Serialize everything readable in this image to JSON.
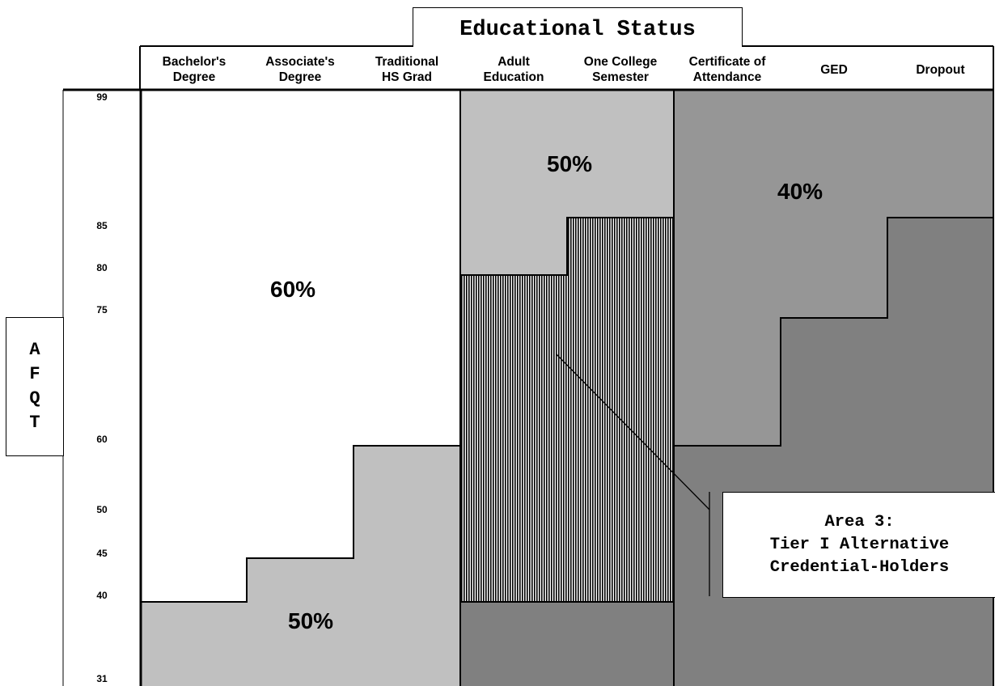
{
  "title": "Educational Status",
  "y_axis_label_letters": [
    "A",
    "F",
    "Q",
    "T"
  ],
  "columns": [
    "Bachelor's Degree",
    "Associate's Degree",
    "Traditional HS Grad",
    "Adult Education",
    "One College Semester",
    "Certificate of Attendance",
    "GED",
    "Dropout"
  ],
  "column_lines": [
    [
      "Bachelor's",
      "Degree"
    ],
    [
      "Associate's",
      "Degree"
    ],
    [
      "Traditional",
      "HS Grad"
    ],
    [
      "Adult",
      "Education"
    ],
    [
      "One College",
      "Semester"
    ],
    [
      "Certificate of",
      "Attendance"
    ],
    [
      "GED"
    ],
    [
      "Dropout"
    ]
  ],
  "afqt_ticks": [
    "99",
    "85",
    "80",
    "75",
    "60",
    "50",
    "45",
    "40",
    "31"
  ],
  "regions": [
    {
      "label": "60%",
      "fill": "#ffffff",
      "description_hidden": false
    },
    {
      "label": "50%",
      "fill": "#c0c0c0"
    },
    {
      "label": "50%",
      "fill": "#c0c0c0"
    },
    {
      "label": "40%",
      "fill": "#969696"
    }
  ],
  "labels": {
    "pct_60": "60%",
    "pct_50_top": "50%",
    "pct_40": "40%",
    "pct_50_bottom": "50%"
  },
  "callout": {
    "line1": "Area 3:",
    "line2": "Tier I Alternative",
    "line3": "Credential-Holders"
  },
  "colors": {
    "white_region": "#ffffff",
    "light_gray": "#c0c0c0",
    "medium_gray": "#969696",
    "dark_gray": "#808080",
    "hatch": "#000000"
  }
}
